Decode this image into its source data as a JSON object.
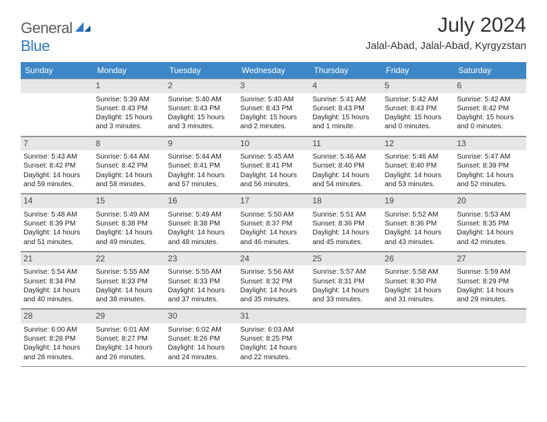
{
  "brand": {
    "general": "General",
    "blue": "Blue"
  },
  "title": "July 2024",
  "location": "Jalal-Abad, Jalal-Abad, Kyrgyzstan",
  "colors": {
    "header_bg": "#3d87c7",
    "header_text": "#ffffff",
    "day_bar_bg": "#e6e6e6",
    "text": "#222222",
    "title_text": "#323232",
    "logo_gray": "#5b5b5b",
    "logo_blue": "#2f78bf",
    "rule": "#8a8a8a"
  },
  "weekdays": [
    "Sunday",
    "Monday",
    "Tuesday",
    "Wednesday",
    "Thursday",
    "Friday",
    "Saturday"
  ],
  "weeks": [
    [
      {
        "empty": true
      },
      {
        "day": "1",
        "sunrise": "Sunrise: 5:39 AM",
        "sunset": "Sunset: 8:43 PM",
        "daylight": "Daylight: 15 hours and 3 minutes."
      },
      {
        "day": "2",
        "sunrise": "Sunrise: 5:40 AM",
        "sunset": "Sunset: 8:43 PM",
        "daylight": "Daylight: 15 hours and 3 minutes."
      },
      {
        "day": "3",
        "sunrise": "Sunrise: 5:40 AM",
        "sunset": "Sunset: 8:43 PM",
        "daylight": "Daylight: 15 hours and 2 minutes."
      },
      {
        "day": "4",
        "sunrise": "Sunrise: 5:41 AM",
        "sunset": "Sunset: 8:43 PM",
        "daylight": "Daylight: 15 hours and 1 minute."
      },
      {
        "day": "5",
        "sunrise": "Sunrise: 5:42 AM",
        "sunset": "Sunset: 8:43 PM",
        "daylight": "Daylight: 15 hours and 0 minutes."
      },
      {
        "day": "6",
        "sunrise": "Sunrise: 5:42 AM",
        "sunset": "Sunset: 8:42 PM",
        "daylight": "Daylight: 15 hours and 0 minutes."
      }
    ],
    [
      {
        "day": "7",
        "sunrise": "Sunrise: 5:43 AM",
        "sunset": "Sunset: 8:42 PM",
        "daylight": "Daylight: 14 hours and 59 minutes."
      },
      {
        "day": "8",
        "sunrise": "Sunrise: 5:44 AM",
        "sunset": "Sunset: 8:42 PM",
        "daylight": "Daylight: 14 hours and 58 minutes."
      },
      {
        "day": "9",
        "sunrise": "Sunrise: 5:44 AM",
        "sunset": "Sunset: 8:41 PM",
        "daylight": "Daylight: 14 hours and 57 minutes."
      },
      {
        "day": "10",
        "sunrise": "Sunrise: 5:45 AM",
        "sunset": "Sunset: 8:41 PM",
        "daylight": "Daylight: 14 hours and 56 minutes."
      },
      {
        "day": "11",
        "sunrise": "Sunrise: 5:46 AM",
        "sunset": "Sunset: 8:40 PM",
        "daylight": "Daylight: 14 hours and 54 minutes."
      },
      {
        "day": "12",
        "sunrise": "Sunrise: 5:46 AM",
        "sunset": "Sunset: 8:40 PM",
        "daylight": "Daylight: 14 hours and 53 minutes."
      },
      {
        "day": "13",
        "sunrise": "Sunrise: 5:47 AM",
        "sunset": "Sunset: 8:39 PM",
        "daylight": "Daylight: 14 hours and 52 minutes."
      }
    ],
    [
      {
        "day": "14",
        "sunrise": "Sunrise: 5:48 AM",
        "sunset": "Sunset: 8:39 PM",
        "daylight": "Daylight: 14 hours and 51 minutes."
      },
      {
        "day": "15",
        "sunrise": "Sunrise: 5:49 AM",
        "sunset": "Sunset: 8:38 PM",
        "daylight": "Daylight: 14 hours and 49 minutes."
      },
      {
        "day": "16",
        "sunrise": "Sunrise: 5:49 AM",
        "sunset": "Sunset: 8:38 PM",
        "daylight": "Daylight: 14 hours and 48 minutes."
      },
      {
        "day": "17",
        "sunrise": "Sunrise: 5:50 AM",
        "sunset": "Sunset: 8:37 PM",
        "daylight": "Daylight: 14 hours and 46 minutes."
      },
      {
        "day": "18",
        "sunrise": "Sunrise: 5:51 AM",
        "sunset": "Sunset: 8:36 PM",
        "daylight": "Daylight: 14 hours and 45 minutes."
      },
      {
        "day": "19",
        "sunrise": "Sunrise: 5:52 AM",
        "sunset": "Sunset: 8:36 PM",
        "daylight": "Daylight: 14 hours and 43 minutes."
      },
      {
        "day": "20",
        "sunrise": "Sunrise: 5:53 AM",
        "sunset": "Sunset: 8:35 PM",
        "daylight": "Daylight: 14 hours and 42 minutes."
      }
    ],
    [
      {
        "day": "21",
        "sunrise": "Sunrise: 5:54 AM",
        "sunset": "Sunset: 8:34 PM",
        "daylight": "Daylight: 14 hours and 40 minutes."
      },
      {
        "day": "22",
        "sunrise": "Sunrise: 5:55 AM",
        "sunset": "Sunset: 8:33 PM",
        "daylight": "Daylight: 14 hours and 38 minutes."
      },
      {
        "day": "23",
        "sunrise": "Sunrise: 5:55 AM",
        "sunset": "Sunset: 8:33 PM",
        "daylight": "Daylight: 14 hours and 37 minutes."
      },
      {
        "day": "24",
        "sunrise": "Sunrise: 5:56 AM",
        "sunset": "Sunset: 8:32 PM",
        "daylight": "Daylight: 14 hours and 35 minutes."
      },
      {
        "day": "25",
        "sunrise": "Sunrise: 5:57 AM",
        "sunset": "Sunset: 8:31 PM",
        "daylight": "Daylight: 14 hours and 33 minutes."
      },
      {
        "day": "26",
        "sunrise": "Sunrise: 5:58 AM",
        "sunset": "Sunset: 8:30 PM",
        "daylight": "Daylight: 14 hours and 31 minutes."
      },
      {
        "day": "27",
        "sunrise": "Sunrise: 5:59 AM",
        "sunset": "Sunset: 8:29 PM",
        "daylight": "Daylight: 14 hours and 29 minutes."
      }
    ],
    [
      {
        "day": "28",
        "sunrise": "Sunrise: 6:00 AM",
        "sunset": "Sunset: 8:28 PM",
        "daylight": "Daylight: 14 hours and 28 minutes."
      },
      {
        "day": "29",
        "sunrise": "Sunrise: 6:01 AM",
        "sunset": "Sunset: 8:27 PM",
        "daylight": "Daylight: 14 hours and 26 minutes."
      },
      {
        "day": "30",
        "sunrise": "Sunrise: 6:02 AM",
        "sunset": "Sunset: 8:26 PM",
        "daylight": "Daylight: 14 hours and 24 minutes."
      },
      {
        "day": "31",
        "sunrise": "Sunrise: 6:03 AM",
        "sunset": "Sunset: 8:25 PM",
        "daylight": "Daylight: 14 hours and 22 minutes."
      },
      {
        "empty": true
      },
      {
        "empty": true
      },
      {
        "empty": true
      }
    ]
  ]
}
